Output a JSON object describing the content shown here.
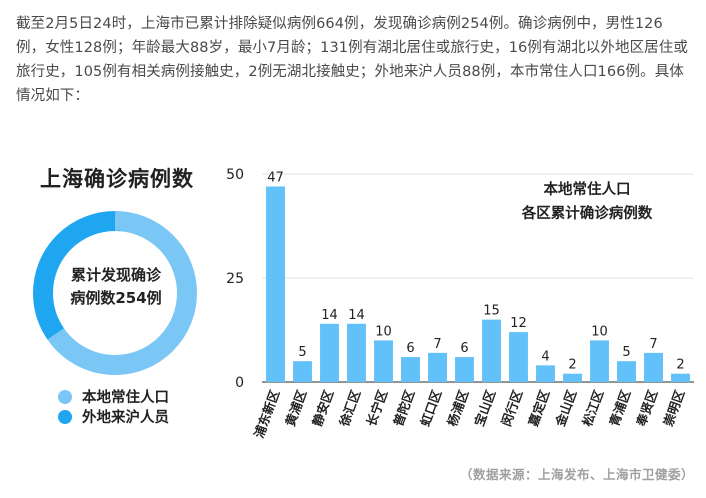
{
  "intro_text": "截至2月5日24时，上海市已累计排除疑似病例664例，发现确诊病例254例。确诊病例中，男性126例，女性128例；年龄最大88岁，最小7月龄；131例有湖北居住或旅行史，16例有湖北以外地区居住或旅行史，105例有相关病例接触史，2例无湖北接触史；外地来沪人员88例，本市常住人口166例。具体情况如下：",
  "donut": {
    "title": "上海确诊病例数",
    "center_line1": "累计发现确诊",
    "center_line2": "病例数254例",
    "legend": [
      {
        "label": "本地常住人口",
        "value": 166,
        "color": "#7ac7f5"
      },
      {
        "label": "外地来沪人员",
        "value": 88,
        "color": "#1fa6f0"
      }
    ]
  },
  "chart_data": {
    "type": "bar",
    "title_line1": "本地常住人口",
    "title_line2": "各区累计确诊病例数",
    "categories": [
      "浦东新区",
      "黄浦区",
      "静安区",
      "徐汇区",
      "长宁区",
      "普陀区",
      "虹口区",
      "杨浦区",
      "宝山区",
      "闵行区",
      "嘉定区",
      "金山区",
      "松江区",
      "青浦区",
      "奉贤区",
      "崇明区"
    ],
    "values": [
      47,
      5,
      14,
      14,
      10,
      6,
      7,
      6,
      15,
      12,
      4,
      2,
      10,
      5,
      7,
      2
    ],
    "yticks": [
      0,
      25,
      50
    ],
    "ylim": [
      0,
      50
    ],
    "bar_color": "#62c1f8",
    "grid": true
  },
  "source_text": "（数据来源：上海发布、上海市卫健委）"
}
